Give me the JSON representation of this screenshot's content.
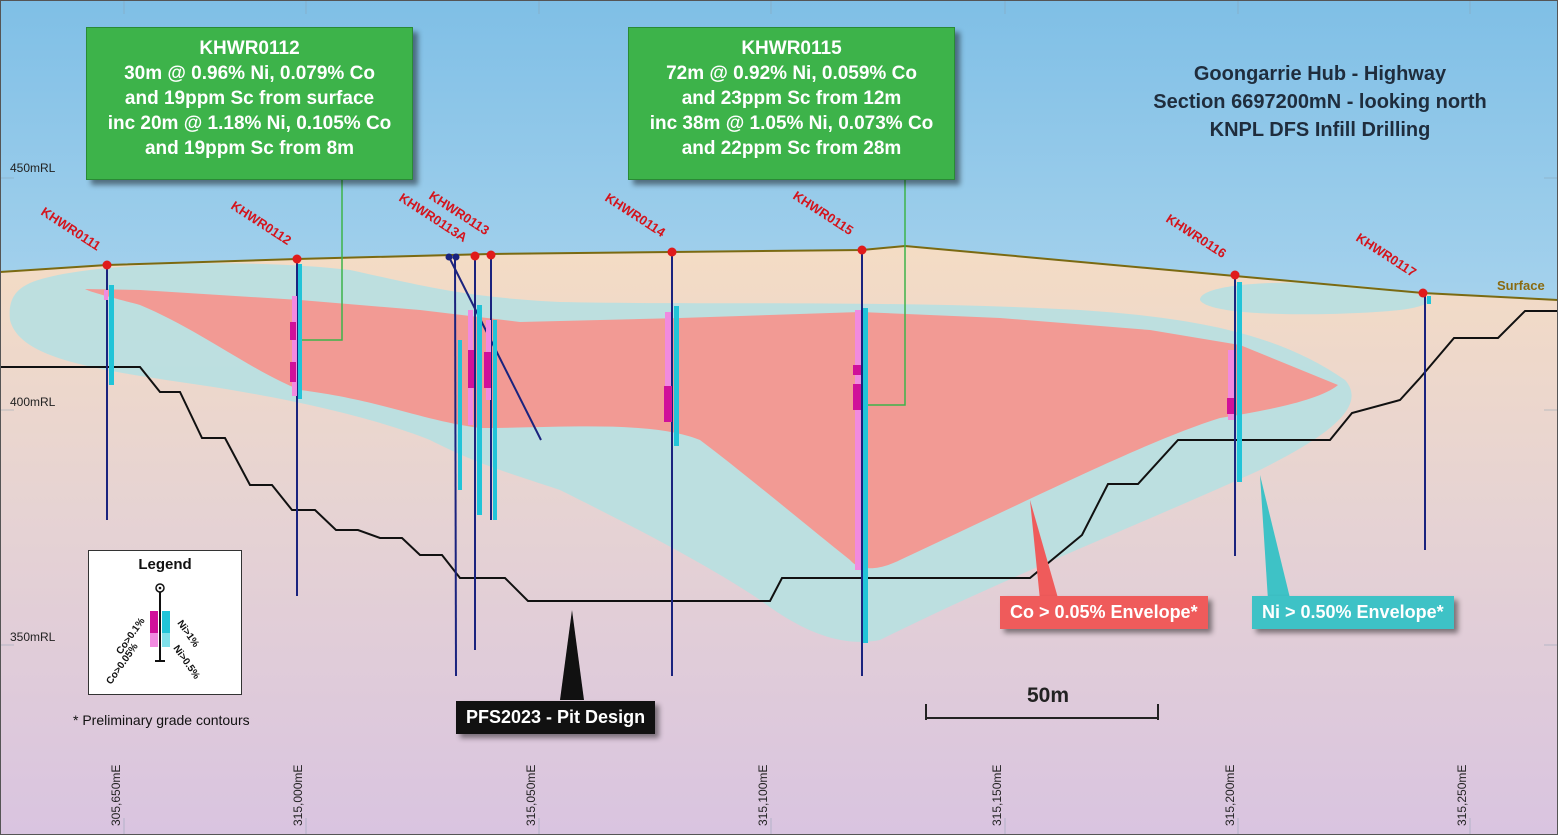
{
  "title": {
    "line1": "Goongarrie Hub - Highway",
    "line2": "Section 6697200mN - looking north",
    "line3": "KNPL DFS Infill Drilling"
  },
  "callouts": {
    "left": {
      "hole": "KHWR0112",
      "lines": [
        "30m @ 0.96% Ni, 0.079% Co",
        "and 19ppm Sc from surface",
        "inc 20m @ 1.18% Ni, 0.105% Co",
        "and 19ppm Sc from 8m"
      ]
    },
    "right": {
      "hole": "KHWR0115",
      "lines": [
        "72m @ 0.92% Ni, 0.059% Co",
        "and 23ppm Sc from 12m",
        "inc 38m @ 1.05% Ni, 0.073% Co",
        "and 22ppm Sc from 28m"
      ]
    }
  },
  "holes": [
    "KHWR0111",
    "KHWR0112",
    "KHWR0113A",
    "KHWR0113",
    "KHWR0114",
    "KHWR0115",
    "KHWR0116",
    "KHWR0117"
  ],
  "rl_labels": [
    "450mRL",
    "400mRL",
    "350mRL"
  ],
  "easting_labels": [
    "305,650mE",
    "315,000mE",
    "315,050mE",
    "315,100mE",
    "315,150mE",
    "315,200mE",
    "315,250mE"
  ],
  "surface_label": "Surface",
  "tags": {
    "co_envelope": "Co > 0.05% Envelope*",
    "ni_envelope": "Ni > 0.50% Envelope*",
    "pit_design": "PFS2023 - Pit Design"
  },
  "legend": {
    "title": "Legend",
    "co_high": "Co>0.1%",
    "co_low": "Co>0.05%",
    "ni_high": "Ni>1%",
    "ni_low": "Ni>0.5%"
  },
  "footnote": "* Preliminary grade contours",
  "scale_bar": "50m",
  "colors": {
    "callout_green": "#3db34a",
    "co_envelope": "#f29a94",
    "ni_envelope": "#b9dfe0",
    "co_tag": "#ef5b5b",
    "ni_tag": "#3ec2c6",
    "pit_tag": "#111111",
    "hole_trace": "#1a237e",
    "collar": "#e01b1b",
    "surface_line": "#7a6a12",
    "magenta": "#d0109a",
    "cyan": "#21c4d8"
  }
}
